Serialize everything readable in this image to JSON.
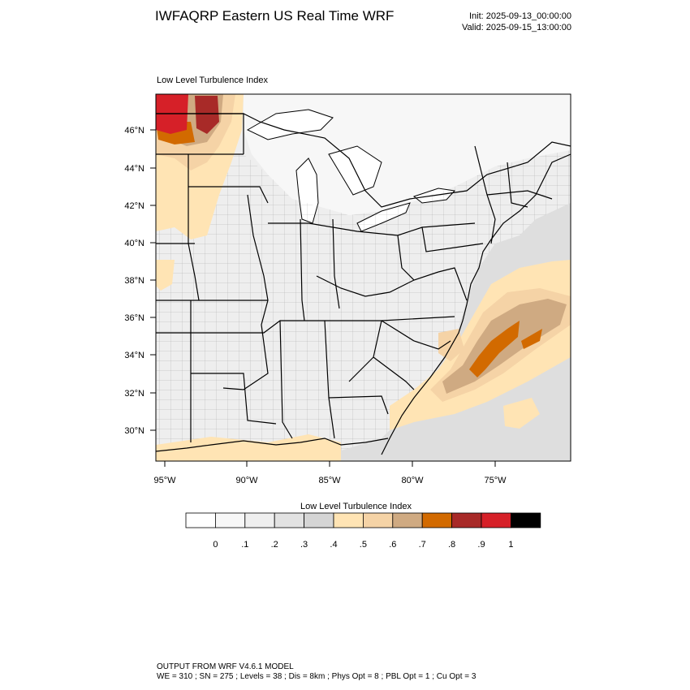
{
  "header": {
    "title": "IWFAQRP Eastern US Real Time WRF",
    "init": "Init: 2025-09-13_00:00:00",
    "valid": "Valid: 2025-09-15_13:00:00"
  },
  "map": {
    "subtitle": "Low Level Turbulence Index",
    "lat_labels": [
      "46°N",
      "44°N",
      "42°N",
      "40°N",
      "38°N",
      "36°N",
      "34°N",
      "32°N",
      "30°N"
    ],
    "lon_labels": [
      "95°W",
      "90°W",
      "85°W",
      "80°W",
      "75°W"
    ]
  },
  "colorbar": {
    "title": "Low Level Turbulence Index",
    "labels": [
      "0",
      ".1",
      ".2",
      ".3",
      ".4",
      ".5",
      ".6",
      ".7",
      ".8",
      ".9",
      "1"
    ],
    "colors": [
      "#ffffff",
      "#f7f7f7",
      "#efefef",
      "#e2e2e2",
      "#d5d5d5",
      "#ffe4b4",
      "#f5d3a6",
      "#cfaa82",
      "#d26a00",
      "#a82a28",
      "#d62028",
      "#000000"
    ]
  },
  "footer": {
    "line1": "OUTPUT FROM WRF V4.6.1 MODEL",
    "line2": "WE = 310 ; SN = 275 ; Levels = 38 ; Dis = 8km ; Phys Opt = 8 ; PBL Opt = 1 ; Cu Opt = 3"
  }
}
